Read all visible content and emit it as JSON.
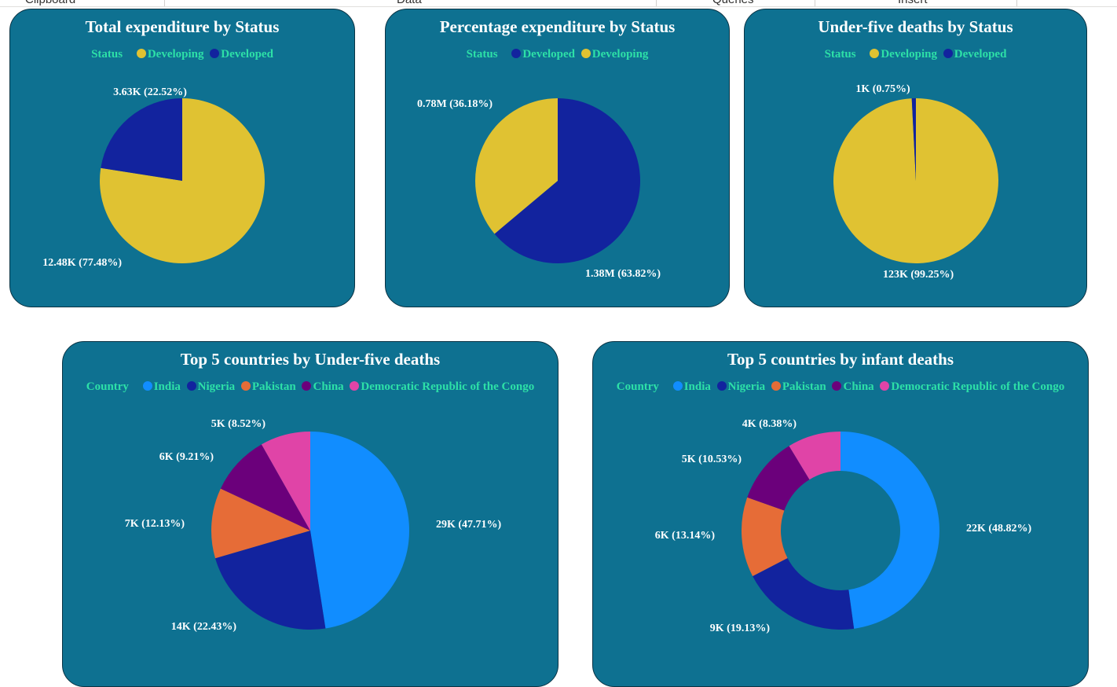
{
  "ribbon": {
    "groups": [
      "Clipboard",
      "Data",
      "Queries",
      "Insert"
    ]
  },
  "colors": {
    "card_bg": "#0e7191",
    "legend_text": "#2de0a7",
    "developing": "#e0c232",
    "developed": "#12239e",
    "India": "#118dff",
    "Nigeria": "#12239e",
    "Pakistan": "#e66c37",
    "China": "#6b007b",
    "Democratic Republic of the Congo": "#e044a7"
  },
  "chart_data": [
    {
      "type": "pie",
      "title": "Total expenditure by Status",
      "legend_title": "Status",
      "categories": [
        "Developing",
        "Developed"
      ],
      "slice_order": [
        "Developing",
        "Developed"
      ],
      "values": [
        12480,
        3630
      ],
      "percents": [
        77.48,
        22.52
      ],
      "labels": [
        "12.48K (77.48%)",
        "3.63K (22.52%)"
      ],
      "legend_position": "top-center"
    },
    {
      "type": "pie",
      "title": "Percentage expenditure by Status",
      "legend_title": "Status",
      "categories": [
        "Developed",
        "Developing"
      ],
      "slice_order": [
        "Developed",
        "Developing"
      ],
      "values": [
        1380000,
        780000
      ],
      "percents": [
        63.82,
        36.18
      ],
      "labels": [
        "1.38M (63.82%)",
        "0.78M (36.18%)"
      ],
      "legend_position": "top-center"
    },
    {
      "type": "pie",
      "title": "Under-five deaths by Status",
      "legend_title": "Status",
      "categories": [
        "Developing",
        "Developed"
      ],
      "slice_order": [
        "Developing",
        "Developed"
      ],
      "values": [
        123000,
        1000
      ],
      "percents": [
        99.25,
        0.75
      ],
      "labels": [
        "123K (99.25%)",
        "1K (0.75%)"
      ],
      "legend_position": "top-center"
    },
    {
      "type": "pie",
      "title": "Top 5 countries by Under-five deaths",
      "legend_title": "Country",
      "categories": [
        "India",
        "Nigeria",
        "Pakistan",
        "China",
        "Democratic Republic of the Congo"
      ],
      "values": [
        29000,
        14000,
        7000,
        6000,
        5000
      ],
      "percents": [
        47.71,
        22.43,
        12.13,
        9.21,
        8.52
      ],
      "labels": [
        "29K (47.71%)",
        "14K (22.43%)",
        "7K (12.13%)",
        "6K (9.21%)",
        "5K (8.52%)"
      ],
      "legend_position": "top-center"
    },
    {
      "type": "pie",
      "donut": true,
      "title": "Top 5 countries by infant deaths",
      "legend_title": "Country",
      "categories": [
        "India",
        "Nigeria",
        "Pakistan",
        "China",
        "Democratic Republic of the Congo"
      ],
      "values": [
        22000,
        9000,
        6000,
        5000,
        4000
      ],
      "percents": [
        48.82,
        19.13,
        13.14,
        10.53,
        8.38
      ],
      "labels": [
        "22K (48.82%)",
        "9K (19.13%)",
        "6K (13.14%)",
        "5K (10.53%)",
        "4K (8.38%)"
      ],
      "legend_position": "top-center"
    }
  ]
}
